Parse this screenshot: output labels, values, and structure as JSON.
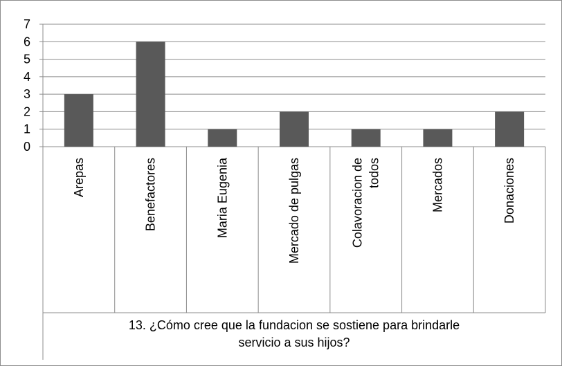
{
  "chart_data": {
    "type": "bar",
    "xlabel": "13. ¿Cómo cree que la fundacion se sostiene para brindarle servicio a sus hijos?",
    "categories": [
      "Arepas",
      "Benefactores",
      "Maria Eugenia",
      "Mercado de pulgas",
      "Colavoracion de todos",
      "Mercados",
      "Donaciones"
    ],
    "values": [
      3,
      6,
      1,
      2,
      1,
      1,
      2
    ],
    "color": "#595959",
    "ylim": [
      0,
      7
    ],
    "yticks": [
      0,
      1,
      2,
      3,
      4,
      5,
      6,
      7
    ],
    "grid": true
  }
}
